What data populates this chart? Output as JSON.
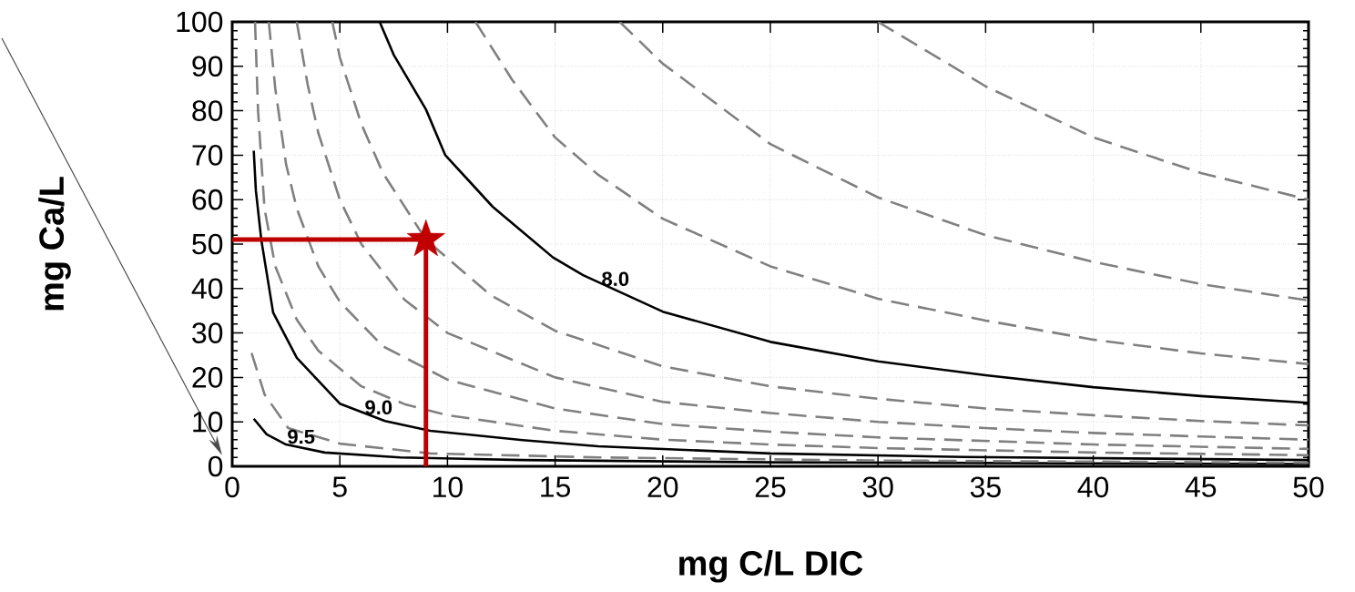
{
  "chart_data": {
    "type": "line",
    "xlabel": "mg C/L DIC",
    "ylabel": "mg Ca/L",
    "xlim": [
      0,
      50
    ],
    "ylim": [
      0,
      100
    ],
    "xticks": [
      0,
      5,
      10,
      15,
      20,
      25,
      30,
      35,
      40,
      45,
      50
    ],
    "yticks": [
      0,
      10,
      20,
      30,
      40,
      50,
      60,
      70,
      80,
      90,
      100
    ],
    "grid": true,
    "series": [
      {
        "color": "#000000",
        "line_style": "solid",
        "x": [
          1.0,
          1.6,
          2.5,
          4.3,
          7.8,
          13.5,
          25,
          50
        ],
        "values": [
          10.7,
          7.2,
          4.9,
          3.1,
          2.0,
          1.4,
          0.9,
          0.5
        ]
      },
      {
        "color": "#808080",
        "line_style": "dashed",
        "x": [
          0.9,
          1.5,
          2.6,
          5,
          9.2,
          17,
          30,
          50
        ],
        "values": [
          25.5,
          16.2,
          8.6,
          5.1,
          2.9,
          2.0,
          1.3,
          0.8
        ]
      },
      {
        "color": "#000000",
        "line_style": "solid",
        "x": [
          1.0,
          1.1,
          1.35,
          1.9,
          3,
          5,
          7.1,
          9.2,
          13.5,
          17,
          25,
          34,
          50
        ],
        "values": [
          71,
          62,
          51,
          34.6,
          24.4,
          14.1,
          10.2,
          8,
          5.9,
          4.5,
          2.9,
          2.1,
          1.4
        ]
      },
      {
        "color": "#808080",
        "line_style": "dashed",
        "x": [
          1.06,
          1.2,
          1.5,
          2,
          3,
          4,
          6,
          8,
          10,
          15,
          20,
          25,
          30,
          40,
          50
        ],
        "values": [
          100,
          80,
          58,
          45,
          33,
          26,
          18,
          14,
          11.5,
          8,
          6,
          4.9,
          4.1,
          3.1,
          2.5
        ]
      },
      {
        "color": "#808080",
        "line_style": "dashed",
        "x": [
          1.7,
          2,
          2.5,
          3,
          4,
          5,
          7,
          10,
          15,
          20,
          25,
          30,
          40,
          50
        ],
        "values": [
          100,
          85,
          68,
          58,
          45,
          37,
          27,
          19.5,
          13,
          9.5,
          7.8,
          6.5,
          4.9,
          3.9
        ]
      },
      {
        "color": "#808080",
        "line_style": "dashed",
        "x": [
          3.0,
          3.5,
          4,
          5,
          6,
          8,
          10,
          15,
          20,
          25,
          30,
          35,
          40,
          45,
          50
        ],
        "values": [
          100,
          86,
          75,
          60,
          50,
          37.5,
          30,
          20,
          14.5,
          12,
          10,
          8.6,
          7.5,
          6.7,
          6.0
        ]
      },
      {
        "color": "#808080",
        "line_style": "dashed",
        "x": [
          4.65,
          5,
          6,
          7,
          9,
          12,
          15,
          20,
          25,
          30,
          35,
          40,
          45,
          50
        ],
        "values": [
          100,
          92,
          77,
          66,
          51,
          38.5,
          30.5,
          22.5,
          18,
          15.2,
          13,
          11.5,
          10.2,
          9.2
        ]
      },
      {
        "color": "#000000",
        "line_style": "solid",
        "x": [
          6.85,
          7.5,
          9,
          9.9,
          12.1,
          14.9,
          16.3,
          20,
          25,
          30,
          35,
          40,
          45,
          50
        ],
        "values": [
          100,
          92.6,
          80.3,
          70,
          58.4,
          47,
          43,
          34.8,
          28,
          23.6,
          20.5,
          17.8,
          15.8,
          14.3
        ]
      },
      {
        "color": "#808080",
        "line_style": "dashed",
        "x": [
          11.3,
          13,
          15,
          17,
          20,
          25,
          30,
          35,
          40,
          45,
          50
        ],
        "values": [
          100,
          87,
          74,
          65.6,
          55.7,
          45,
          37.7,
          32.8,
          28.5,
          25.4,
          23
        ]
      },
      {
        "color": "#808080",
        "line_style": "dashed",
        "x": [
          18,
          20,
          25,
          30,
          35,
          40,
          45,
          50
        ],
        "values": [
          100,
          90.6,
          72.5,
          60.5,
          52,
          46,
          41,
          37.3
        ]
      },
      {
        "color": "#808080",
        "line_style": "dashed",
        "x": [
          30,
          35,
          40,
          45,
          50
        ],
        "values": [
          100,
          85.5,
          74,
          66,
          60
        ]
      },
      {
        "color": "#c00000",
        "line_style": "solid",
        "x": [
          0,
          9,
          9
        ],
        "values": [
          51,
          51,
          0
        ]
      },
      {
        "type": "scatter",
        "color": "#c00000",
        "marker": "star",
        "x": [
          9
        ],
        "values": [
          51
        ]
      }
    ],
    "annotations": [
      {
        "text": "8.0",
        "x": 17.8,
        "y": 39.7
      },
      {
        "text": "9.0",
        "x": 6.8,
        "y": 10.8
      },
      {
        "text": "9.5",
        "x": 3.2,
        "y": 4.2
      }
    ]
  }
}
